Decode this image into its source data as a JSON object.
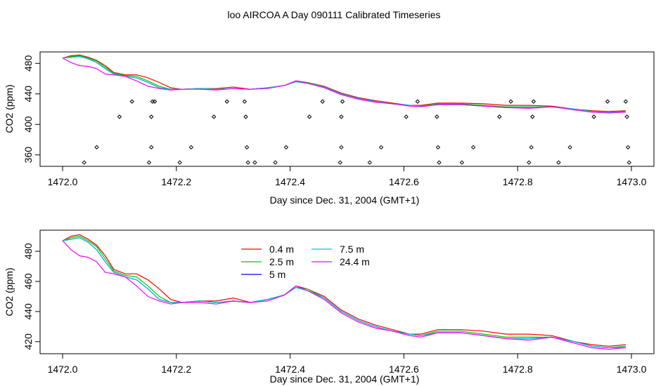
{
  "title": "loo AIRCOA A  Day 090111  Calibrated Timeseries",
  "chart_data": [
    {
      "type": "scatter",
      "xlabel": "Day since Dec. 31, 2004 (GMT+1)",
      "ylabel": "CO2 (ppm)",
      "xlim": [
        1472.0,
        1473.0
      ],
      "ylim": [
        345,
        495
      ],
      "x_ticks": [
        "1472.0",
        "1472.2",
        "1472.4",
        "1472.6",
        "1472.8",
        "1473.0"
      ],
      "y_ticks": [
        "360",
        "400",
        "440",
        "480"
      ],
      "grid": false,
      "series": [
        {
          "color": "#ff0000",
          "x": [
            1472.0,
            1472.015,
            1472.03,
            1472.045,
            1472.06,
            1472.075,
            1472.09,
            1472.11,
            1472.13,
            1472.15,
            1472.17,
            1472.19,
            1472.21,
            1472.24,
            1472.27,
            1472.3,
            1472.33,
            1472.36,
            1472.39,
            1472.41,
            1472.43,
            1472.46,
            1472.49,
            1472.52,
            1472.55,
            1472.58,
            1472.61,
            1472.63,
            1472.66,
            1472.7,
            1472.74,
            1472.78,
            1472.82,
            1472.86,
            1472.9,
            1472.93,
            1472.96,
            1472.99
          ],
          "y": [
            487,
            490,
            491,
            488,
            484,
            477,
            468,
            465,
            465,
            461,
            455,
            448,
            446,
            447,
            447,
            449,
            446,
            448,
            451,
            457,
            455,
            450,
            441,
            435,
            431,
            428,
            425,
            425,
            428,
            428,
            427,
            425,
            425,
            424,
            420,
            418,
            417,
            418
          ]
        },
        {
          "color": "#00cc00",
          "x": [
            1472.0,
            1472.015,
            1472.03,
            1472.045,
            1472.06,
            1472.075,
            1472.09,
            1472.11,
            1472.13,
            1472.15,
            1472.17,
            1472.19,
            1472.21,
            1472.24,
            1472.27,
            1472.3,
            1472.33,
            1472.36,
            1472.39,
            1472.41,
            1472.43,
            1472.46,
            1472.49,
            1472.52,
            1472.55,
            1472.58,
            1472.61,
            1472.63,
            1472.66,
            1472.7,
            1472.74,
            1472.78,
            1472.82,
            1472.86,
            1472.9,
            1472.93,
            1472.96,
            1472.99
          ],
          "y": [
            487,
            489,
            490,
            487,
            483,
            475,
            467,
            464,
            463,
            457,
            450,
            446,
            446,
            447,
            446,
            447,
            446,
            448,
            451,
            456,
            455,
            449,
            440,
            434,
            430,
            427,
            425,
            424,
            427,
            427,
            425,
            423,
            423,
            423,
            420,
            417,
            416,
            417
          ]
        },
        {
          "color": "#0000ff",
          "x": [
            1472.0,
            1472.015,
            1472.03,
            1472.045,
            1472.06,
            1472.075,
            1472.09,
            1472.11,
            1472.13,
            1472.15,
            1472.17,
            1472.19,
            1472.21,
            1472.24,
            1472.27,
            1472.3,
            1472.33,
            1472.36,
            1472.39,
            1472.41,
            1472.43,
            1472.46,
            1472.49,
            1472.52,
            1472.55,
            1472.58,
            1472.61,
            1472.63,
            1472.66,
            1472.7,
            1472.74,
            1472.78,
            1472.82,
            1472.86,
            1472.9,
            1472.93,
            1472.96,
            1472.99
          ],
          "y": [
            487,
            488,
            489,
            486,
            481,
            473,
            466,
            463,
            461,
            455,
            448,
            446,
            446,
            447,
            446,
            447,
            446,
            448,
            451,
            456,
            454,
            449,
            440,
            434,
            430,
            427,
            425,
            424,
            426,
            426,
            424,
            422,
            422,
            423,
            420,
            417,
            416,
            416
          ]
        },
        {
          "color": "#00cccc",
          "x": [
            1472.0,
            1472.015,
            1472.03,
            1472.045,
            1472.06,
            1472.075,
            1472.09,
            1472.11,
            1472.13,
            1472.15,
            1472.17,
            1472.19,
            1472.21,
            1472.24,
            1472.27,
            1472.3,
            1472.33,
            1472.36,
            1472.39,
            1472.41,
            1472.43,
            1472.46,
            1472.49,
            1472.52,
            1472.55,
            1472.58,
            1472.61,
            1472.63,
            1472.66,
            1472.7,
            1472.74,
            1472.78,
            1472.82,
            1472.86,
            1472.9,
            1472.93,
            1472.96,
            1472.99
          ],
          "y": [
            487,
            488,
            489,
            486,
            481,
            473,
            466,
            463,
            461,
            455,
            448,
            446,
            446,
            447,
            446,
            447,
            446,
            448,
            451,
            456,
            454,
            449,
            440,
            434,
            430,
            427,
            425,
            424,
            426,
            426,
            424,
            422,
            422,
            423,
            420,
            417,
            416,
            416
          ]
        },
        {
          "color": "#ff00ff",
          "x": [
            1472.0,
            1472.015,
            1472.03,
            1472.045,
            1472.06,
            1472.075,
            1472.09,
            1472.11,
            1472.13,
            1472.15,
            1472.17,
            1472.19,
            1472.21,
            1472.24,
            1472.27,
            1472.3,
            1472.33,
            1472.36,
            1472.39,
            1472.41,
            1472.43,
            1472.46,
            1472.49,
            1472.52,
            1472.55,
            1472.58,
            1472.61,
            1472.63,
            1472.66,
            1472.7,
            1472.74,
            1472.78,
            1472.82,
            1472.86,
            1472.9,
            1472.93,
            1472.96,
            1472.99
          ],
          "y": [
            487,
            481,
            477,
            476,
            473,
            466,
            465,
            463,
            457,
            450,
            447,
            445,
            446,
            446,
            445,
            447,
            446,
            447,
            451,
            457,
            454,
            448,
            439,
            433,
            429,
            427,
            424,
            423,
            426,
            426,
            424,
            422,
            421,
            423,
            419,
            416,
            415,
            416
          ]
        },
        {
          "color": "#000000",
          "marker": "diamond",
          "x": [
            1472.038,
            1472.06,
            1472.1,
            1472.122,
            1472.152,
            1472.156,
            1472.156,
            1472.158,
            1472.162,
            1472.206,
            1472.226,
            1472.266,
            1472.289,
            1472.32,
            1472.322,
            1472.324,
            1472.326,
            1472.338,
            1472.374,
            1472.393,
            1472.434,
            1472.457,
            1472.488,
            1472.49,
            1472.49,
            1472.492,
            1472.54,
            1472.56,
            1472.604,
            1472.624,
            1472.658,
            1472.66,
            1472.662,
            1472.702,
            1472.722,
            1472.768,
            1472.788,
            1472.82,
            1472.824,
            1472.826,
            1472.828,
            1472.872,
            1472.892,
            1472.934,
            1472.958,
            1472.99,
            1472.992,
            1472.994,
            1472.996
          ],
          "y": [
            350,
            370,
            410,
            430,
            350,
            370,
            410,
            430,
            430,
            350,
            370,
            410,
            430,
            430,
            410,
            370,
            350,
            350,
            350,
            370,
            410,
            430,
            350,
            370,
            410,
            430,
            350,
            370,
            410,
            430,
            410,
            370,
            350,
            350,
            370,
            410,
            430,
            350,
            370,
            410,
            430,
            350,
            370,
            410,
            430,
            430,
            410,
            370,
            350
          ]
        }
      ]
    },
    {
      "type": "line",
      "xlabel": "Day since Dec. 31, 2004 (GMT+1)",
      "ylabel": "CO2 (ppm)",
      "xlim": [
        1472.0,
        1473.0
      ],
      "ylim": [
        412,
        494
      ],
      "x_ticks": [
        "1472.0",
        "1472.2",
        "1472.4",
        "1472.6",
        "1472.8",
        "1473.0"
      ],
      "y_ticks": [
        "420",
        "440",
        "460",
        "480"
      ],
      "grid": false,
      "legend": "top-center",
      "series": [
        {
          "name": "0.4 m",
          "color": "#ff0000",
          "x": [
            1472.0,
            1472.015,
            1472.03,
            1472.045,
            1472.06,
            1472.075,
            1472.09,
            1472.11,
            1472.13,
            1472.15,
            1472.17,
            1472.19,
            1472.21,
            1472.24,
            1472.27,
            1472.3,
            1472.33,
            1472.36,
            1472.39,
            1472.41,
            1472.43,
            1472.46,
            1472.49,
            1472.52,
            1472.55,
            1472.58,
            1472.61,
            1472.63,
            1472.66,
            1472.7,
            1472.74,
            1472.78,
            1472.82,
            1472.86,
            1472.9,
            1472.93,
            1472.96,
            1472.99
          ],
          "y": [
            487,
            490,
            491,
            488,
            484,
            477,
            468,
            465,
            465,
            461,
            455,
            448,
            446,
            447,
            447,
            449,
            446,
            448,
            451,
            457,
            455,
            450,
            441,
            435,
            431,
            428,
            425,
            425,
            428,
            428,
            427,
            425,
            425,
            424,
            420,
            418,
            417,
            418
          ]
        },
        {
          "name": "2.5 m",
          "color": "#00cc00",
          "x": [
            1472.0,
            1472.015,
            1472.03,
            1472.045,
            1472.06,
            1472.075,
            1472.09,
            1472.11,
            1472.13,
            1472.15,
            1472.17,
            1472.19,
            1472.21,
            1472.24,
            1472.27,
            1472.3,
            1472.33,
            1472.36,
            1472.39,
            1472.41,
            1472.43,
            1472.46,
            1472.49,
            1472.52,
            1472.55,
            1472.58,
            1472.61,
            1472.63,
            1472.66,
            1472.7,
            1472.74,
            1472.78,
            1472.82,
            1472.86,
            1472.9,
            1472.93,
            1472.96,
            1472.99
          ],
          "y": [
            487,
            489,
            490,
            487,
            483,
            475,
            467,
            464,
            463,
            457,
            450,
            446,
            446,
            447,
            446,
            447,
            446,
            448,
            451,
            456,
            455,
            449,
            440,
            434,
            430,
            427,
            425,
            424,
            427,
            427,
            425,
            423,
            423,
            423,
            420,
            417,
            416,
            417
          ]
        },
        {
          "name": "5 m",
          "color": "#0000ff",
          "x": [
            1472.0,
            1472.015,
            1472.03,
            1472.045,
            1472.06,
            1472.075,
            1472.09,
            1472.11,
            1472.13,
            1472.15,
            1472.17,
            1472.19,
            1472.21,
            1472.24,
            1472.27,
            1472.3,
            1472.33,
            1472.36,
            1472.39,
            1472.41,
            1472.43,
            1472.46,
            1472.49,
            1472.52,
            1472.55,
            1472.58,
            1472.61,
            1472.63,
            1472.66,
            1472.7,
            1472.74,
            1472.78,
            1472.82,
            1472.86,
            1472.9,
            1472.93,
            1472.96,
            1472.99
          ],
          "y": [
            487,
            488,
            489,
            486,
            481,
            473,
            466,
            463,
            461,
            455,
            448,
            446,
            446,
            447,
            446,
            447,
            446,
            448,
            451,
            456,
            454,
            449,
            440,
            434,
            430,
            427,
            425,
            424,
            426,
            426,
            424,
            422,
            422,
            423,
            420,
            417,
            416,
            416
          ]
        },
        {
          "name": "7.5 m",
          "color": "#00cccc",
          "x": [
            1472.0,
            1472.015,
            1472.03,
            1472.045,
            1472.06,
            1472.075,
            1472.09,
            1472.11,
            1472.13,
            1472.15,
            1472.17,
            1472.19,
            1472.21,
            1472.24,
            1472.27,
            1472.3,
            1472.33,
            1472.36,
            1472.39,
            1472.41,
            1472.43,
            1472.46,
            1472.49,
            1472.52,
            1472.55,
            1472.58,
            1472.61,
            1472.63,
            1472.66,
            1472.7,
            1472.74,
            1472.78,
            1472.82,
            1472.86,
            1472.9,
            1472.93,
            1472.96,
            1472.99
          ],
          "y": [
            487,
            488,
            489,
            486,
            481,
            473,
            466,
            463,
            461,
            455,
            448,
            446,
            446,
            447,
            446,
            447,
            446,
            448,
            451,
            456,
            454,
            449,
            440,
            434,
            430,
            427,
            425,
            424,
            426,
            426,
            424,
            422,
            422,
            423,
            420,
            417,
            416,
            416
          ]
        },
        {
          "name": "24.4 m",
          "color": "#ff00ff",
          "x": [
            1472.0,
            1472.015,
            1472.03,
            1472.045,
            1472.06,
            1472.075,
            1472.09,
            1472.11,
            1472.13,
            1472.15,
            1472.17,
            1472.19,
            1472.21,
            1472.24,
            1472.27,
            1472.3,
            1472.33,
            1472.36,
            1472.39,
            1472.41,
            1472.43,
            1472.46,
            1472.49,
            1472.52,
            1472.55,
            1472.58,
            1472.61,
            1472.63,
            1472.66,
            1472.7,
            1472.74,
            1472.78,
            1472.82,
            1472.86,
            1472.9,
            1472.93,
            1472.96,
            1472.99
          ],
          "y": [
            487,
            481,
            477,
            476,
            473,
            466,
            465,
            463,
            457,
            450,
            447,
            445,
            446,
            446,
            445,
            447,
            446,
            447,
            451,
            457,
            454,
            448,
            439,
            433,
            429,
            427,
            424,
            423,
            426,
            426,
            424,
            422,
            421,
            423,
            419,
            416,
            415,
            416
          ]
        }
      ]
    }
  ]
}
